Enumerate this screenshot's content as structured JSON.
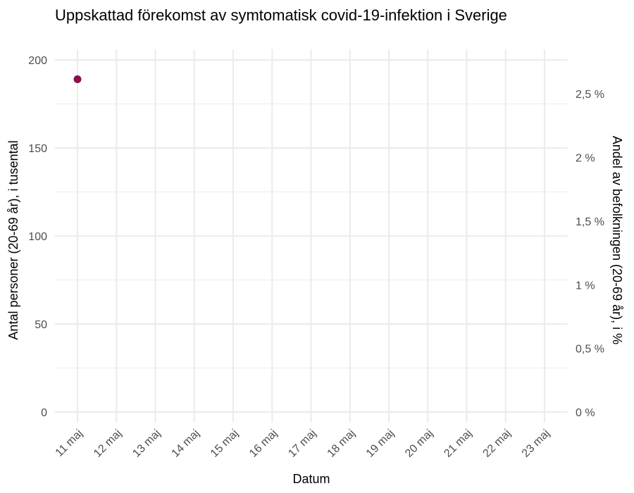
{
  "chart_data": {
    "type": "scatter",
    "title": "Uppskattad förekomst av symtomatisk covid-19-infektion i Sverige",
    "xlabel": "Datum",
    "ylabel": "Antal personer (20-69 år), i tusental",
    "ylabel_right": "Andel av befolkningen (20-69 år), i %",
    "x_tick_labels": [
      "11 maj",
      "12 maj",
      "13 maj",
      "14 maj",
      "15 maj",
      "16 maj",
      "17 maj",
      "18 maj",
      "19 maj",
      "20 maj",
      "21 maj",
      "22 maj",
      "23 maj"
    ],
    "y_ticks": [
      0,
      50,
      100,
      150,
      200
    ],
    "y_ticks_right": [
      "0 %",
      "0,5 %",
      "1 %",
      "1,5 %",
      "2 %",
      "2,5 %"
    ],
    "ylim": [
      -6,
      206
    ],
    "ylim_right_percent": [
      -0.083,
      2.85
    ],
    "grid": true,
    "series": [
      {
        "x": [
          "11 maj"
        ],
        "values": [
          189
        ],
        "color": "#8b0f4a"
      }
    ]
  }
}
